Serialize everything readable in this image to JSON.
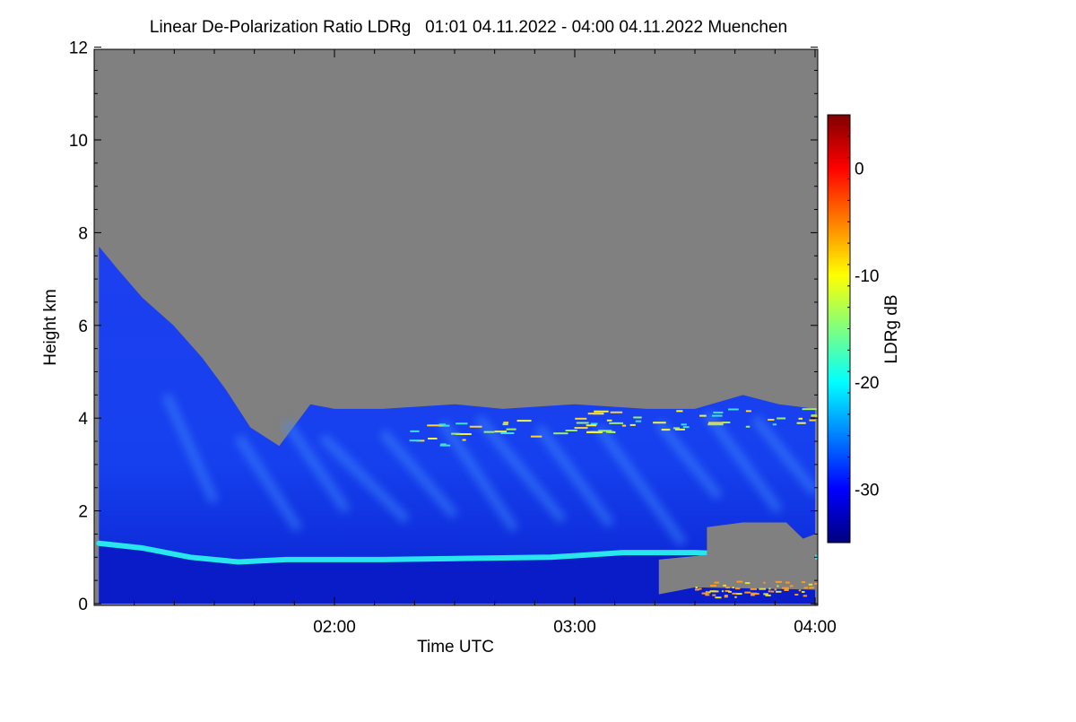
{
  "chart_data": {
    "type": "heatmap",
    "title": "Linear De-Polarization Ratio LDRg   01:01 04.11.2022 - 04:00 04.11.2022 Muenchen",
    "xlabel": "Time UTC",
    "ylabel": "Height km",
    "x_range": [
      "01:01",
      "04:00"
    ],
    "x_ticks": [
      "02:00",
      "03:00",
      "04:00"
    ],
    "ylim": [
      0,
      12
    ],
    "y_ticks": [
      "0",
      "2",
      "4",
      "6",
      "8",
      "10",
      "12"
    ],
    "colorbar": {
      "label": "LDRg dB",
      "range": [
        -35,
        5
      ],
      "ticks": [
        "0",
        "-10",
        "-20",
        "-30"
      ],
      "colormap": "jet",
      "nodata_color": "#808080"
    },
    "features": {
      "cloud_top_km": [
        [
          1.02,
          7.7
        ],
        [
          1.1,
          7.2
        ],
        [
          1.2,
          6.6
        ],
        [
          1.33,
          6.0
        ],
        [
          1.45,
          5.3
        ],
        [
          1.55,
          4.6
        ],
        [
          1.65,
          3.8
        ],
        [
          1.77,
          3.4
        ],
        [
          1.9,
          4.3
        ],
        [
          2.0,
          4.2
        ],
        [
          2.2,
          4.2
        ],
        [
          2.5,
          4.3
        ],
        [
          2.7,
          4.2
        ],
        [
          3.0,
          4.3
        ],
        [
          3.3,
          4.2
        ],
        [
          3.5,
          4.2
        ],
        [
          3.7,
          4.5
        ],
        [
          3.85,
          4.3
        ],
        [
          4.0,
          4.2
        ]
      ],
      "boundary_layer_top_km": [
        [
          1.02,
          1.3
        ],
        [
          1.2,
          1.2
        ],
        [
          1.4,
          1.0
        ],
        [
          1.6,
          0.9
        ],
        [
          1.8,
          0.95
        ],
        [
          2.2,
          0.95
        ],
        [
          2.6,
          0.98
        ],
        [
          2.9,
          1.0
        ],
        [
          3.2,
          1.1
        ],
        [
          3.5,
          1.1
        ],
        [
          4.0,
          1.0
        ]
      ],
      "melting_layer_km": [
        [
          2.3,
          3.6
        ],
        [
          2.9,
          3.9
        ],
        [
          3.5,
          4.0
        ],
        [
          4.0,
          4.0
        ]
      ]
    }
  }
}
